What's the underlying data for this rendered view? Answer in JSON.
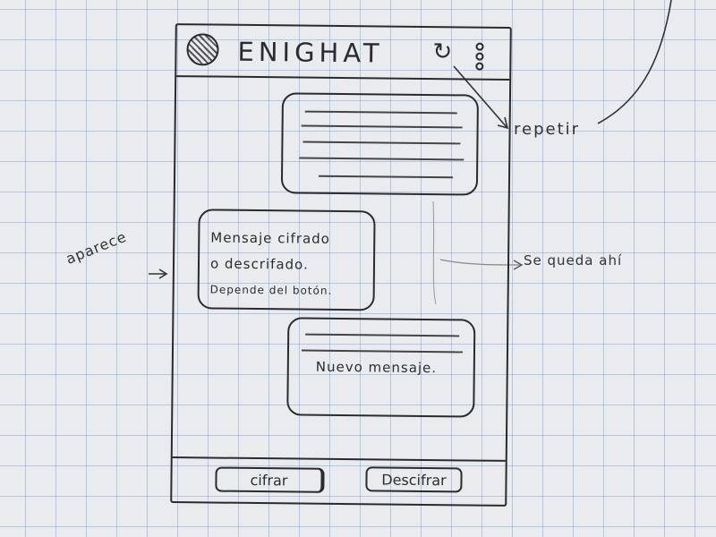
{
  "app": {
    "title": "ENIGHAT",
    "repeat_icon": "↻",
    "menu_icon": "kebab-menu-icon"
  },
  "messages": {
    "bubble_2_lines": [
      "Mensaje cifrado",
      "o descrifado.",
      "Depende del botón."
    ],
    "bubble_3_text": "Nuevo mensaje."
  },
  "bottom_bar": {
    "cifrar_label": "cifrar",
    "descifrar_label": "Descifrar"
  },
  "annotations": {
    "repetir": "repetir",
    "aparece": "aparece",
    "se_queda_ahi": "Se queda ahí"
  },
  "colors": {
    "paper": "#e9ebee",
    "grid": "#5082c8",
    "pencil": "#2b2b2b"
  }
}
